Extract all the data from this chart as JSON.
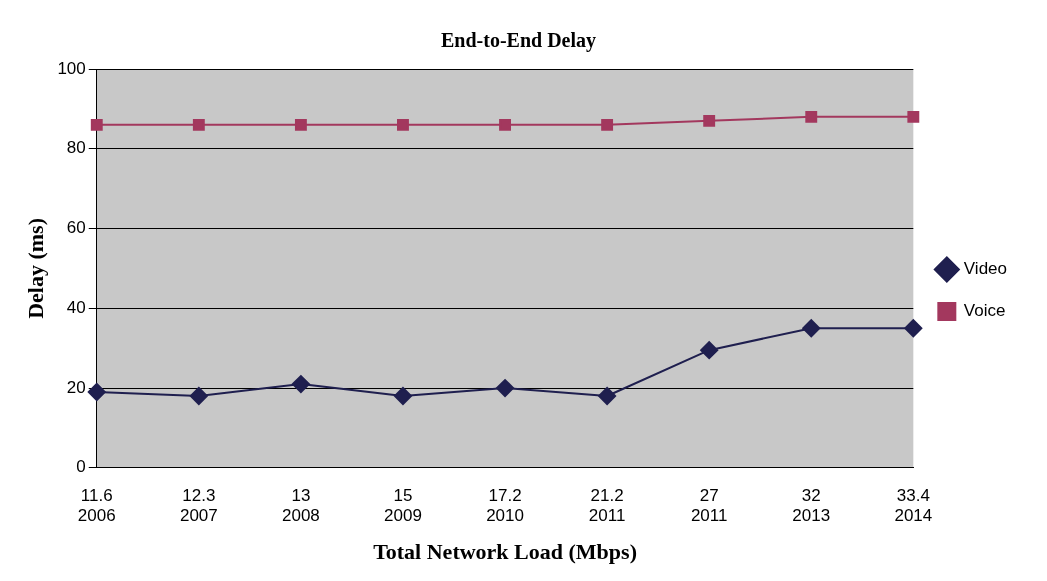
{
  "chart_data": {
    "type": "line",
    "title": "End-to-End Delay",
    "xlabel": "Total Network Load (Mbps)",
    "ylabel": "Delay (ms)",
    "categories": [
      "11.6\n2006",
      "12.3\n2007",
      "13\n2008",
      "15\n2009",
      "17.2\n2010",
      "21.2\n2011",
      "27\n2011",
      "32\n2013",
      "33.4\n2014"
    ],
    "series": [
      {
        "name": "Video",
        "color": "#1f1f4f",
        "marker": "diamond",
        "values": [
          19,
          18,
          21,
          18,
          20,
          18,
          29.5,
          35,
          35
        ]
      },
      {
        "name": "Voice",
        "color": "#a3385e",
        "marker": "square",
        "values": [
          86,
          86,
          86,
          86,
          86,
          86,
          87,
          88,
          88
        ]
      }
    ],
    "ylim": [
      0,
      100
    ],
    "yticks": [
      0,
      20,
      40,
      60,
      80,
      100
    ],
    "grid": "y",
    "legend": "right",
    "line_style": "solid"
  }
}
